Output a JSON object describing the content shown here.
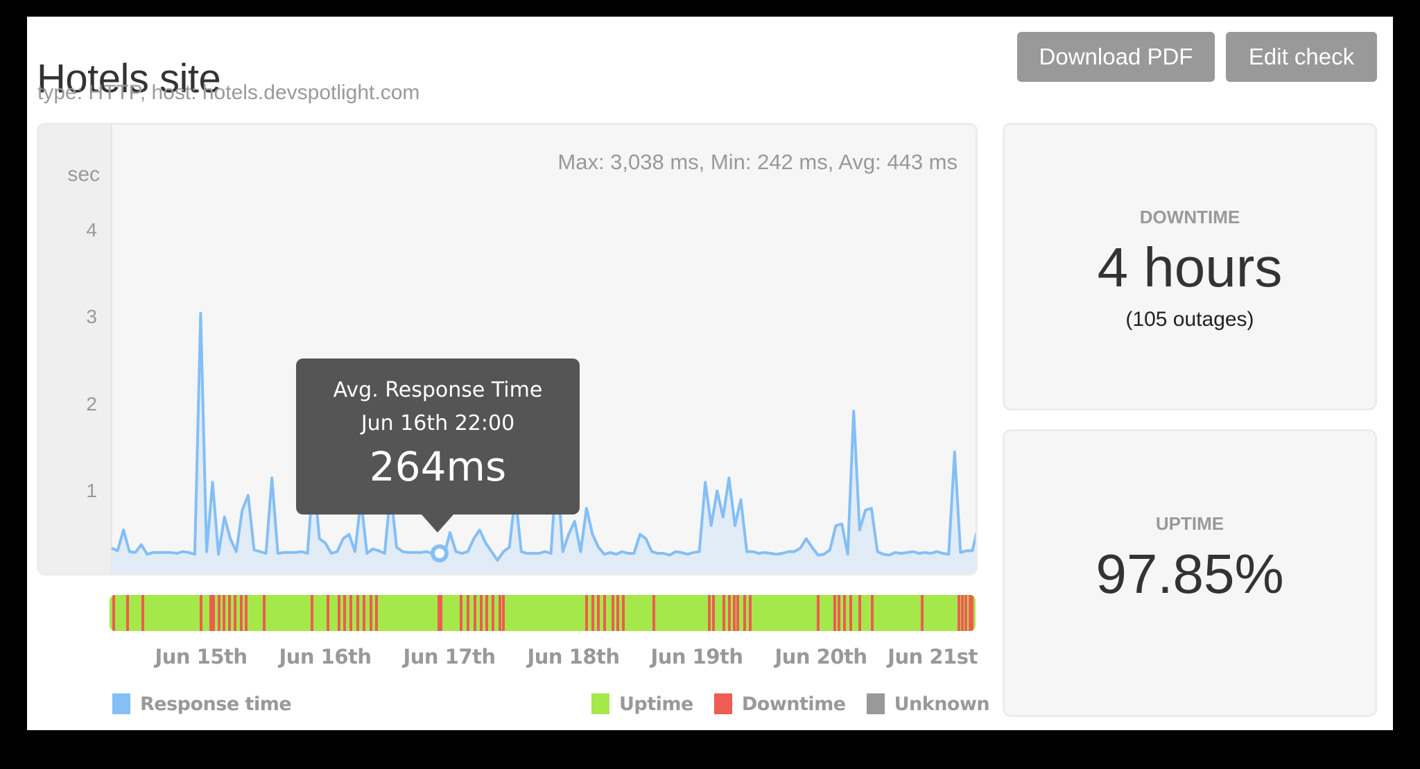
{
  "header": {
    "title": "Hotels site",
    "subtitle": "type: HTTP, host: hotels.devspotlight.com",
    "buttons": {
      "download_pdf": "Download PDF",
      "edit_check": "Edit check"
    }
  },
  "chart": {
    "y_unit": "sec",
    "y_ticks": [
      "4",
      "3",
      "2",
      "1"
    ],
    "stats": "Max: 3,038 ms, Min: 242 ms, Avg: 443 ms",
    "tooltip": {
      "title": "Avg. Response Time",
      "time": "Jun 16th 22:00",
      "value": "264ms"
    },
    "x_labels": [
      "Jun 15th",
      "Jun 16th",
      "Jun 17th",
      "Jun 18th",
      "Jun 19th",
      "Jun 20th",
      "Jun 21st"
    ],
    "legend": {
      "response_time": "Response time",
      "uptime": "Uptime",
      "downtime": "Downtime",
      "unknown": "Unknown"
    },
    "colors": {
      "response_line": "#84bff5",
      "response_fill": "#e1ecf7",
      "uptime": "#a5e84a",
      "downtime": "#ee5c52",
      "unknown": "#999999",
      "tooltip_bg": "#555555"
    }
  },
  "stats": {
    "downtime": {
      "label": "DOWNTIME",
      "value": "4 hours",
      "sub": "(105 outages)"
    },
    "uptime": {
      "label": "UPTIME",
      "value": "97.85%"
    }
  },
  "chart_data": {
    "type": "line",
    "title": "Avg. Response Time",
    "xlabel": "",
    "ylabel": "sec",
    "ylim": [
      0,
      4.5
    ],
    "y_ticks": [
      1,
      2,
      3,
      4
    ],
    "x_tick_labels": [
      "Jun 15th",
      "Jun 16th",
      "Jun 17th",
      "Jun 18th",
      "Jun 19th",
      "Jun 20th",
      "Jun 21st"
    ],
    "summary": {
      "max_ms": 3038,
      "min_ms": 242,
      "avg_ms": 443
    },
    "highlighted_point": {
      "time": "Jun 16th 22:00",
      "value_ms": 264
    },
    "series": [
      {
        "name": "Response time",
        "unit": "sec",
        "values": [
          0.34,
          0.31,
          0.55,
          0.3,
          0.29,
          0.38,
          0.27,
          0.29,
          0.29,
          0.29,
          0.29,
          0.28,
          0.3,
          0.29,
          0.27,
          3.05,
          0.3,
          1.1,
          0.27,
          0.7,
          0.45,
          0.3,
          0.78,
          0.95,
          0.32,
          0.3,
          0.28,
          1.15,
          0.28,
          0.29,
          0.29,
          0.29,
          0.3,
          0.28,
          1.2,
          0.45,
          0.4,
          0.28,
          0.3,
          0.45,
          0.5,
          0.3,
          0.9,
          0.28,
          0.33,
          0.31,
          0.28,
          1.0,
          0.35,
          0.3,
          0.29,
          0.29,
          0.29,
          0.3,
          0.28,
          0.31,
          0.26,
          0.52,
          0.3,
          0.28,
          0.3,
          0.45,
          0.55,
          0.4,
          0.3,
          0.2,
          0.3,
          0.35,
          0.95,
          0.3,
          0.28,
          0.28,
          0.28,
          0.3,
          0.28,
          1.3,
          0.3,
          0.5,
          0.65,
          0.3,
          0.8,
          0.5,
          0.35,
          0.27,
          0.29,
          0.27,
          0.3,
          0.28,
          0.28,
          0.5,
          0.45,
          0.3,
          0.28,
          0.28,
          0.26,
          0.3,
          0.29,
          0.27,
          0.29,
          0.3,
          1.1,
          0.6,
          1.0,
          0.7,
          1.15,
          0.6,
          0.9,
          0.3,
          0.3,
          0.28,
          0.29,
          0.28,
          0.27,
          0.28,
          0.3,
          0.3,
          0.34,
          0.45,
          0.35,
          0.26,
          0.27,
          0.32,
          0.6,
          0.62,
          0.27,
          1.92,
          0.55,
          0.78,
          0.8,
          0.3,
          0.27,
          0.26,
          0.29,
          0.28,
          0.29,
          0.3,
          0.28,
          0.29,
          0.28,
          0.3,
          0.28,
          0.27,
          1.45,
          0.29,
          0.31,
          0.31,
          0.6
        ]
      }
    ],
    "status_bar": {
      "legend": [
        "Uptime",
        "Downtime",
        "Unknown"
      ],
      "downtime_band_count_visible": 61
    }
  }
}
